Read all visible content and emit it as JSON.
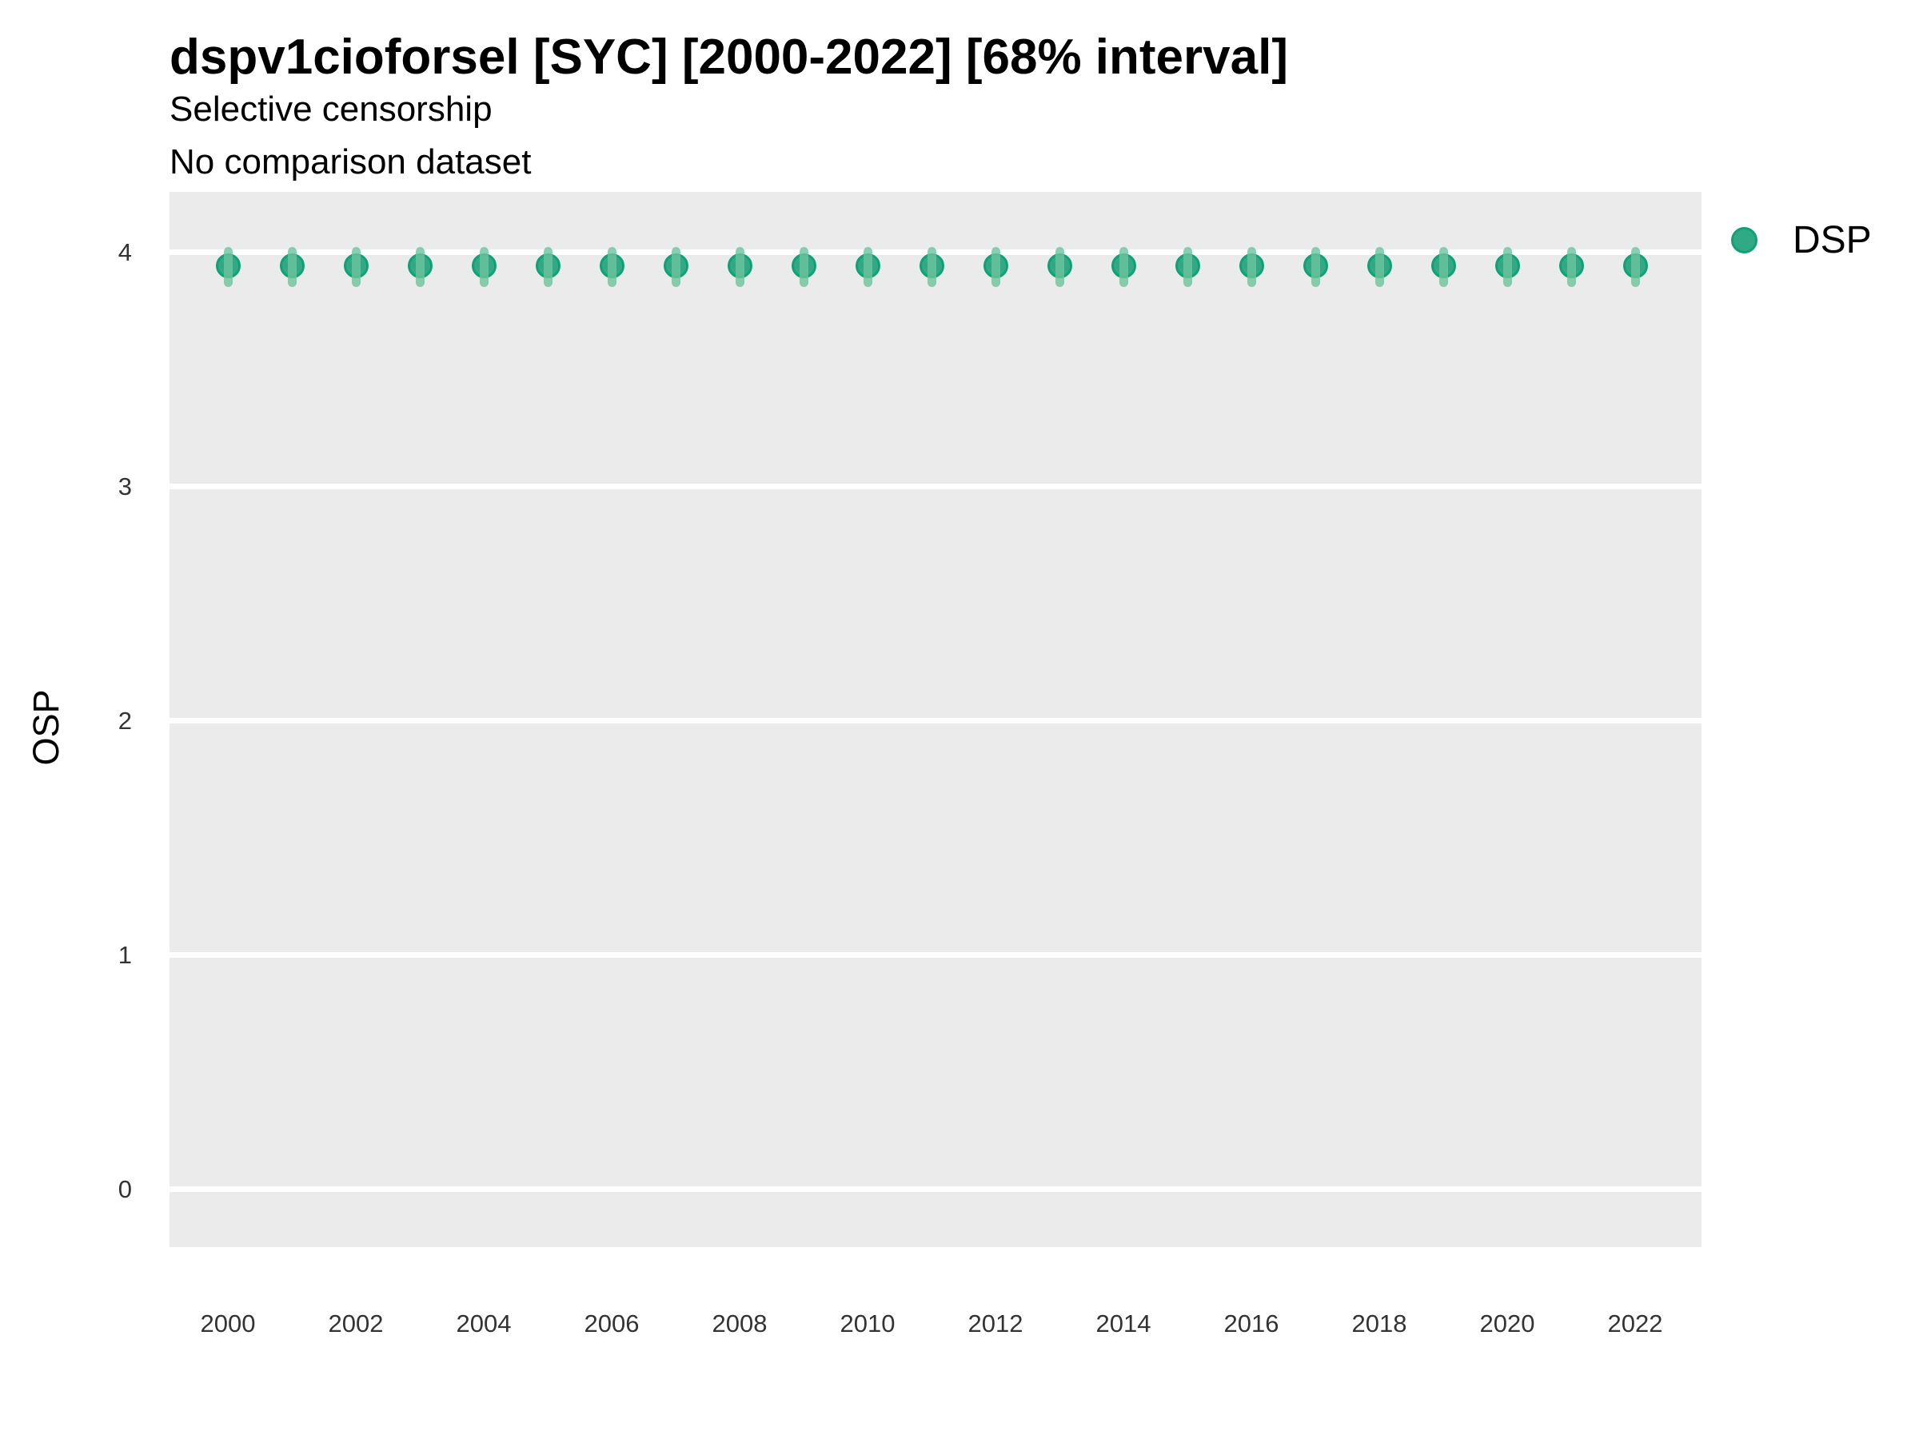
{
  "title": "dspv1cioforsel [SYC] [2000-2022] [68% interval]",
  "subtitle1": "Selective censorship",
  "subtitle2": "No comparison dataset",
  "legend": {
    "label": "DSP",
    "position": "right"
  },
  "colors": {
    "panel_background": "#ebebeb",
    "gridline": "#ffffff",
    "point_fill": "#2faa84",
    "point_stroke": "#12a076",
    "interval_bar": "rgba(110,195,160,0.8)",
    "tick_text": "#333333",
    "title_text": "#000000"
  },
  "chart_data": {
    "type": "scatter",
    "title": "dspv1cioforsel [SYC] [2000-2022] [68% interval]",
    "subtitle": [
      "Selective censorship",
      "No comparison dataset"
    ],
    "xlabel": "",
    "ylabel": "OSP",
    "interval_level": "68%",
    "legend_position": "right",
    "grid": "white horizontal major gridlines on grey panel",
    "xlim": [
      1999,
      2023
    ],
    "ylim": [
      -0.25,
      4.25
    ],
    "xticks": [
      2000,
      2002,
      2004,
      2006,
      2008,
      2010,
      2012,
      2014,
      2016,
      2018,
      2020,
      2022
    ],
    "yticks": [
      0,
      1,
      2,
      3,
      4
    ],
    "x": [
      2000,
      2001,
      2002,
      2003,
      2004,
      2005,
      2006,
      2007,
      2008,
      2009,
      2010,
      2011,
      2012,
      2013,
      2014,
      2015,
      2016,
      2017,
      2018,
      2019,
      2020,
      2021,
      2022
    ],
    "series": [
      {
        "name": "DSP",
        "values": [
          3.94,
          3.94,
          3.94,
          3.94,
          3.94,
          3.94,
          3.94,
          3.94,
          3.94,
          3.94,
          3.94,
          3.94,
          3.94,
          3.94,
          3.94,
          3.94,
          3.94,
          3.94,
          3.94,
          3.94,
          3.94,
          3.94,
          3.94
        ],
        "interval_low": [
          3.85,
          3.85,
          3.85,
          3.85,
          3.85,
          3.85,
          3.85,
          3.85,
          3.85,
          3.85,
          3.85,
          3.85,
          3.85,
          3.85,
          3.85,
          3.85,
          3.85,
          3.85,
          3.85,
          3.85,
          3.85,
          3.85,
          3.85
        ],
        "interval_high": [
          4.02,
          4.02,
          4.02,
          4.02,
          4.02,
          4.02,
          4.02,
          4.02,
          4.02,
          4.02,
          4.02,
          4.02,
          4.02,
          4.02,
          4.02,
          4.02,
          4.02,
          4.02,
          4.02,
          4.02,
          4.02,
          4.02,
          4.02
        ]
      }
    ]
  }
}
